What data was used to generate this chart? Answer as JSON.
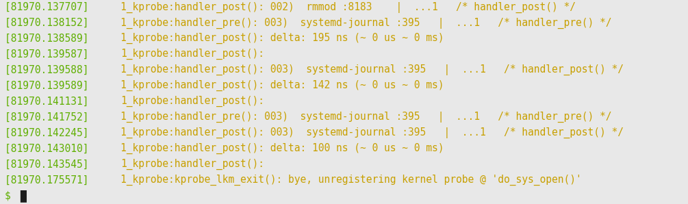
{
  "background_color": "#e8e8e8",
  "color_green": "#5faf00",
  "color_yellow": "#c8a000",
  "color_dark": "#1c1c1c",
  "font_size": 10.5,
  "figsize": [
    10.05,
    2.98
  ],
  "dpi": 100,
  "lines": [
    {
      "parts": [
        {
          "text": "[81970.137707] ",
          "color": "green"
        },
        {
          "text": "1_kprobe:handler_post(): 002)  rmmod :8183    |  ...1   /* handler_post() */",
          "color": "yellow"
        }
      ]
    },
    {
      "parts": [
        {
          "text": "[81970.138152] ",
          "color": "green"
        },
        {
          "text": "1_kprobe:handler_pre(): 003)  systemd-journal :395   |  ...1   /* handler_pre() */",
          "color": "yellow"
        }
      ]
    },
    {
      "parts": [
        {
          "text": "[81970.138589] ",
          "color": "green"
        },
        {
          "text": "1_kprobe:handler_post(): delta: 195 ns (~ 0 us ~ 0 ms)",
          "color": "yellow"
        }
      ]
    },
    {
      "parts": [
        {
          "text": "[81970.139587] ",
          "color": "green"
        },
        {
          "text": "1_kprobe:handler_post():",
          "color": "yellow"
        }
      ]
    },
    {
      "parts": [
        {
          "text": "[81970.139588] ",
          "color": "green"
        },
        {
          "text": "1_kprobe:handler_post(): 003)  systemd-journal :395   |  ...1   /* handler_post() */",
          "color": "yellow"
        }
      ]
    },
    {
      "parts": [
        {
          "text": "[81970.139589] ",
          "color": "green"
        },
        {
          "text": "1_kprobe:handler_post(): delta: 142 ns (~ 0 us ~ 0 ms)",
          "color": "yellow"
        }
      ]
    },
    {
      "parts": [
        {
          "text": "[81970.141131] ",
          "color": "green"
        },
        {
          "text": "1_kprobe:handler_post():",
          "color": "yellow"
        }
      ]
    },
    {
      "parts": [
        {
          "text": "[81970.141752] ",
          "color": "green"
        },
        {
          "text": "1_kprobe:handler_pre(): 003)  systemd-journal :395   |  ...1   /* handler_pre() */",
          "color": "yellow"
        }
      ]
    },
    {
      "parts": [
        {
          "text": "[81970.142245] ",
          "color": "green"
        },
        {
          "text": "1_kprobe:handler_post(): 003)  systemd-journal :395   |  ...1   /* handler_post() */",
          "color": "yellow"
        }
      ]
    },
    {
      "parts": [
        {
          "text": "[81970.143010] ",
          "color": "green"
        },
        {
          "text": "1_kprobe:handler_post(): delta: 100 ns (~ 0 us ~ 0 ms)",
          "color": "yellow"
        }
      ]
    },
    {
      "parts": [
        {
          "text": "[81970.143545] ",
          "color": "green"
        },
        {
          "text": "1_kprobe:handler_post():",
          "color": "yellow"
        }
      ]
    },
    {
      "parts": [
        {
          "text": "[81970.175571] ",
          "color": "green"
        },
        {
          "text": "1_kprobe:kprobe_lkm_exit(): bye, unregistering kernel probe @ 'do_sys_open()'",
          "color": "yellow"
        }
      ]
    },
    {
      "parts": [
        {
          "text": "$ ",
          "color": "green"
        },
        {
          "text": "█",
          "color": "dark"
        }
      ]
    }
  ]
}
